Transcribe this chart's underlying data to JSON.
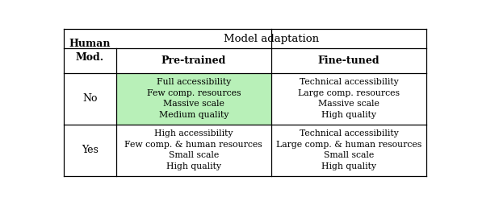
{
  "title": "Model adaptation",
  "col_headers": [
    "Pre-trained",
    "Fine-tuned"
  ],
  "row_header_label": "Human\nMod.",
  "row_labels": [
    "No",
    "Yes"
  ],
  "cell_contents": [
    [
      "Full accessibility\nFew comp. resources\nMassive scale\nMedium quality",
      "Technical accessibility\nLarge comp. resources\nMassive scale\nHigh quality"
    ],
    [
      "High accessibility\nFew comp. & human resources\nSmall scale\nHigh quality",
      "Technical accessibility\nLarge comp. & human resources\nSmall scale\nHigh quality"
    ]
  ],
  "highlight_color": "#b8f0b8",
  "background_color": "#ffffff",
  "line_color": "#000000",
  "title_fontsize": 9.5,
  "header_fontsize": 9,
  "cell_fontsize": 7.8,
  "row_label_fontsize": 9
}
